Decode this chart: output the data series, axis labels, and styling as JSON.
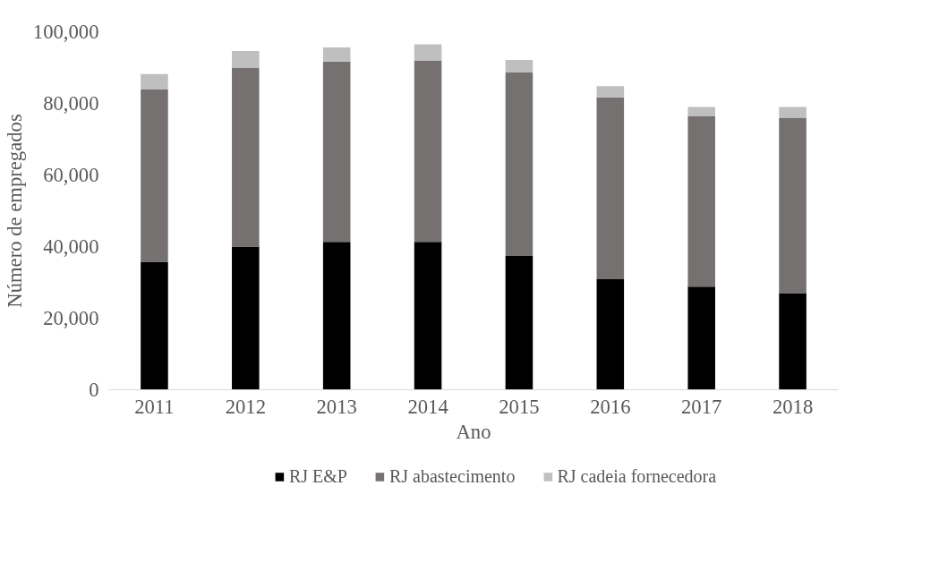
{
  "chart_data": {
    "type": "bar",
    "stacked": true,
    "xlabel": "Ano",
    "ylabel": "Número de empregados",
    "categories": [
      "2011",
      "2012",
      "2013",
      "2014",
      "2015",
      "2016",
      "2017",
      "2018"
    ],
    "series": [
      {
        "name": "RJ E&P",
        "color": "#000000",
        "values": [
          35600,
          40000,
          41300,
          41300,
          37400,
          30900,
          28800,
          27000
        ]
      },
      {
        "name": "RJ abastecimento",
        "color": "#767171",
        "values": [
          48300,
          50000,
          50400,
          50700,
          51200,
          50800,
          47700,
          49000
        ]
      },
      {
        "name": "RJ cadeia fornecedora",
        "color": "#bfbfbf",
        "values": [
          4300,
          4600,
          3900,
          4500,
          3500,
          3100,
          2500,
          3000
        ]
      }
    ],
    "ylim": [
      0,
      100000
    ],
    "yticks": [
      {
        "value": 0,
        "label": "0"
      },
      {
        "value": 20000,
        "label": "20,000"
      },
      {
        "value": 40000,
        "label": "40,000"
      },
      {
        "value": 60000,
        "label": "60,000"
      },
      {
        "value": 80000,
        "label": "80,000"
      },
      {
        "value": 100000,
        "label": "100,000"
      }
    ],
    "grid": false,
    "legend": "bottom"
  }
}
